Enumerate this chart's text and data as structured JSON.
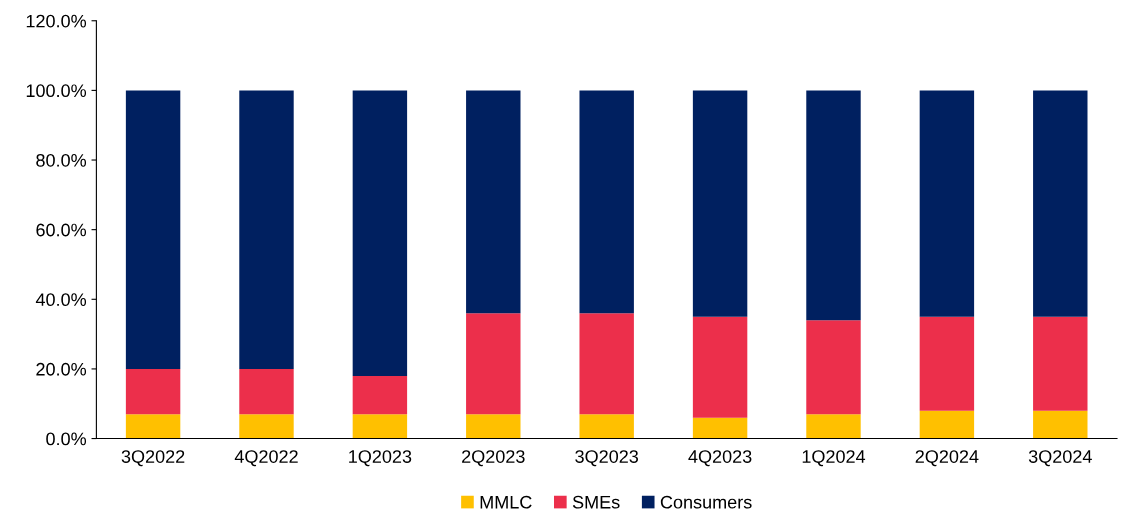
{
  "chart_data": {
    "type": "bar",
    "stacked": true,
    "categories": [
      "3Q2022",
      "4Q2022",
      "1Q2023",
      "2Q2023",
      "3Q2023",
      "4Q2023",
      "1Q2024",
      "2Q2024",
      "3Q2024"
    ],
    "series": [
      {
        "name": "MMLC",
        "color": "#ffc000",
        "values": [
          7,
          7,
          7,
          7,
          7,
          6,
          7,
          8,
          8
        ]
      },
      {
        "name": "SMEs",
        "color": "#ec2f4b",
        "values": [
          13,
          13,
          11,
          29,
          29,
          29,
          27,
          27,
          27
        ]
      },
      {
        "name": "Consumers",
        "color": "#002060",
        "values": [
          80,
          80,
          82,
          64,
          64,
          65,
          66,
          65,
          65
        ]
      }
    ],
    "ylim": [
      0,
      120
    ],
    "yticks": [
      {
        "value": 0,
        "label": "0.0%"
      },
      {
        "value": 20,
        "label": "20.0%"
      },
      {
        "value": 40,
        "label": "40.0%"
      },
      {
        "value": 60,
        "label": "60.0%"
      },
      {
        "value": 80,
        "label": "80.0%"
      },
      {
        "value": 100,
        "label": "100.0%"
      },
      {
        "value": 120,
        "label": "120.0%"
      }
    ],
    "grid": false,
    "legend": "bottom"
  }
}
